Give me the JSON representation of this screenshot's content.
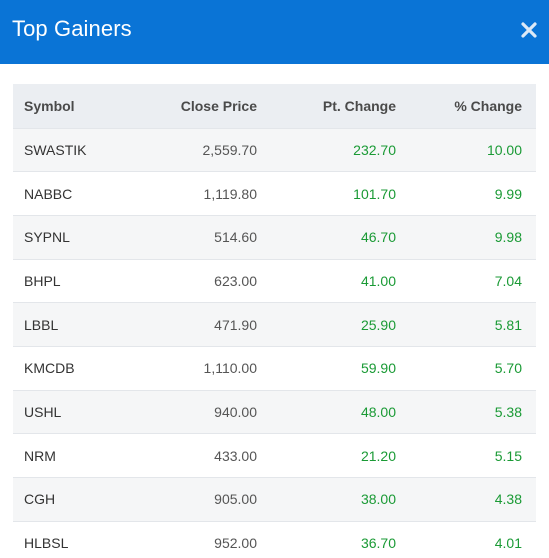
{
  "modal": {
    "title": "Top Gainers",
    "close_icon": "close-icon",
    "header_color": "#0a74d6"
  },
  "table": {
    "headers": {
      "symbol": "Symbol",
      "close_price": "Close Price",
      "pt_change": "Pt. Change",
      "pct_change": "% Change"
    },
    "gain_color": "#1a9a35",
    "rows": [
      {
        "symbol": "SWASTIK",
        "close_price": "2,559.70",
        "pt_change": "232.70",
        "pct_change": "10.00"
      },
      {
        "symbol": "NABBC",
        "close_price": "1,119.80",
        "pt_change": "101.70",
        "pct_change": "9.99"
      },
      {
        "symbol": "SYPNL",
        "close_price": "514.60",
        "pt_change": "46.70",
        "pct_change": "9.98"
      },
      {
        "symbol": "BHPL",
        "close_price": "623.00",
        "pt_change": "41.00",
        "pct_change": "7.04"
      },
      {
        "symbol": "LBBL",
        "close_price": "471.90",
        "pt_change": "25.90",
        "pct_change": "5.81"
      },
      {
        "symbol": "KMCDB",
        "close_price": "1,110.00",
        "pt_change": "59.90",
        "pct_change": "5.70"
      },
      {
        "symbol": "USHL",
        "close_price": "940.00",
        "pt_change": "48.00",
        "pct_change": "5.38"
      },
      {
        "symbol": "NRM",
        "close_price": "433.00",
        "pt_change": "21.20",
        "pct_change": "5.15"
      },
      {
        "symbol": "CGH",
        "close_price": "905.00",
        "pt_change": "38.00",
        "pct_change": "4.38"
      },
      {
        "symbol": "HLBSL",
        "close_price": "952.00",
        "pt_change": "36.70",
        "pct_change": "4.01"
      }
    ]
  }
}
